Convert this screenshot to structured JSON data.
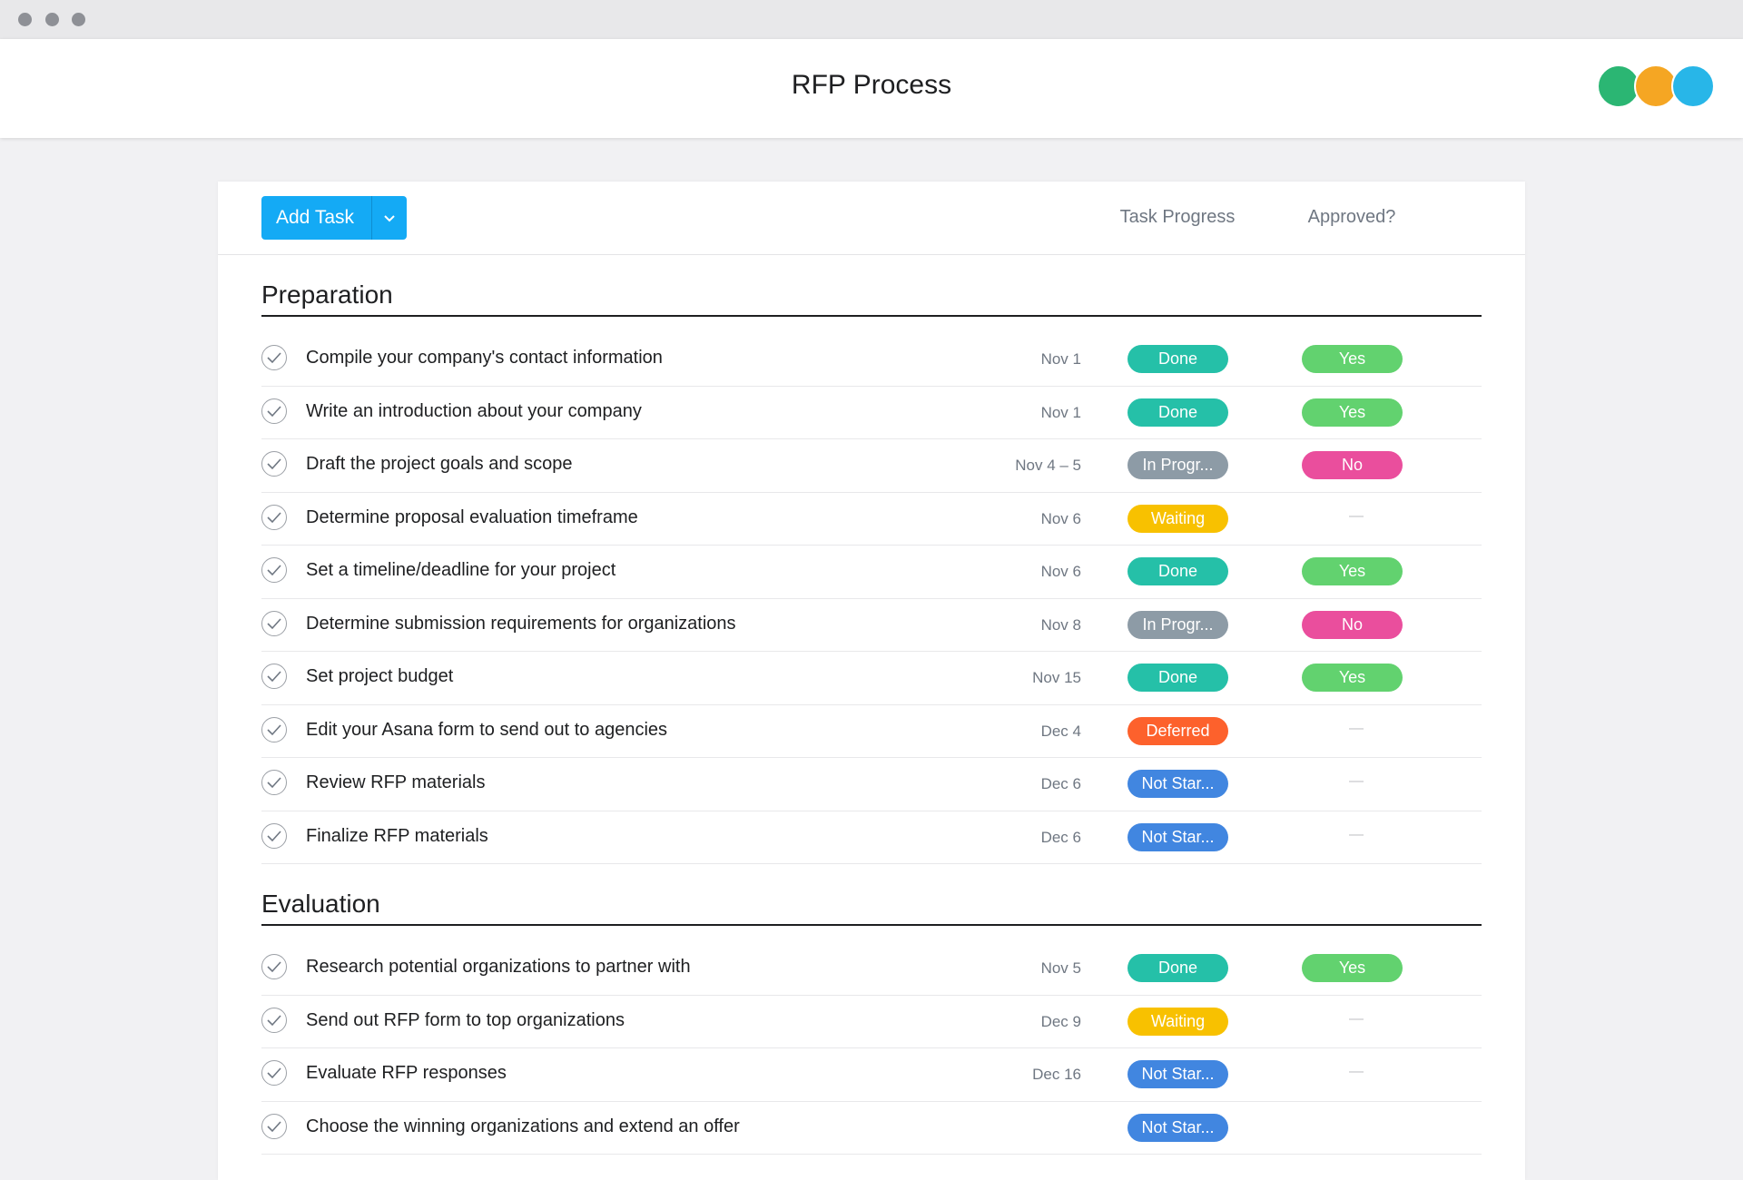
{
  "header": {
    "title": "RFP Process"
  },
  "toolbar": {
    "add_task": "Add Task",
    "columns": [
      "Task Progress",
      "Approved?"
    ]
  },
  "sections": [
    {
      "title": "Preparation",
      "tasks": [
        {
          "name": "Compile your company's contact information",
          "date": "Nov 1",
          "progress": "Done",
          "approved": "Yes"
        },
        {
          "name": "Write an introduction about your company",
          "date": "Nov 1",
          "progress": "Done",
          "approved": "Yes"
        },
        {
          "name": "Draft the project goals and scope",
          "date": "Nov 4 – 5",
          "progress": "In Progr...",
          "approved": "No"
        },
        {
          "name": "Determine proposal evaluation timeframe",
          "date": "Nov 6",
          "progress": "Waiting",
          "approved": "—"
        },
        {
          "name": "Set a timeline/deadline for your project",
          "date": "Nov 6",
          "progress": "Done",
          "approved": "Yes"
        },
        {
          "name": "Determine submission requirements for organizations",
          "date": "Nov 8",
          "progress": "In Progr...",
          "approved": "No"
        },
        {
          "name": "Set project budget",
          "date": "Nov 15",
          "progress": "Done",
          "approved": "Yes"
        },
        {
          "name": "Edit your Asana form to send out to agencies",
          "date": "Dec 4",
          "progress": "Deferred",
          "approved": "—"
        },
        {
          "name": "Review RFP materials",
          "date": "Dec 6",
          "progress": "Not Star...",
          "approved": "—"
        },
        {
          "name": "Finalize RFP materials",
          "date": "Dec 6",
          "progress": "Not Star...",
          "approved": "—"
        }
      ]
    },
    {
      "title": "Evaluation",
      "tasks": [
        {
          "name": "Research potential organizations to partner with",
          "date": "Nov 5",
          "progress": "Done",
          "approved": "Yes"
        },
        {
          "name": "Send out RFP form to top organizations",
          "date": "Dec 9",
          "progress": "Waiting",
          "approved": "—"
        },
        {
          "name": "Evaluate RFP responses",
          "date": "Dec 16",
          "progress": "Not Star...",
          "approved": "—"
        },
        {
          "name": "Choose the winning organizations and extend an offer",
          "progress": "Not Star..."
        }
      ]
    }
  ]
}
